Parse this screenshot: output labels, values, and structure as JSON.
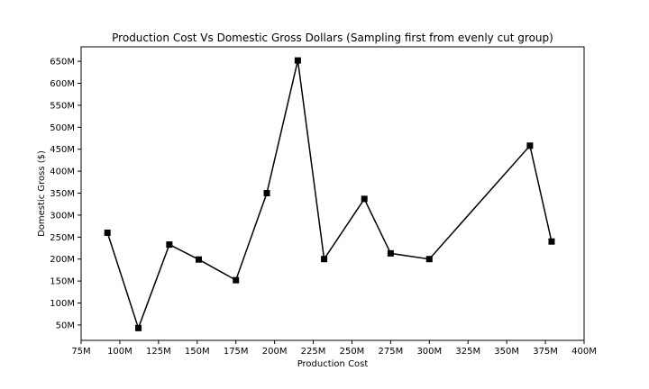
{
  "chart_data": {
    "type": "line",
    "title": "Production Cost Vs Domestic Gross Dollars (Sampling first from evenly cut group)",
    "xlabel": "Production Cost",
    "ylabel": "Domestic Gross ($)",
    "xlim": [
      75000000,
      400000000
    ],
    "ylim": [
      15000000,
      683000000
    ],
    "x_ticks": [
      75000000,
      100000000,
      125000000,
      150000000,
      175000000,
      200000000,
      225000000,
      250000000,
      275000000,
      300000000,
      325000000,
      350000000,
      375000000,
      400000000
    ],
    "x_tick_labels": [
      "75M",
      "100M",
      "125M",
      "150M",
      "175M",
      "200M",
      "225M",
      "250M",
      "275M",
      "300M",
      "325M",
      "350M",
      "375M",
      "400M"
    ],
    "y_ticks": [
      50000000,
      100000000,
      150000000,
      200000000,
      250000000,
      300000000,
      350000000,
      400000000,
      450000000,
      500000000,
      550000000,
      600000000,
      650000000
    ],
    "y_tick_labels": [
      "50M",
      "100M",
      "150M",
      "200M",
      "250M",
      "300M",
      "350M",
      "400M",
      "450M",
      "500M",
      "550M",
      "600M",
      "650M"
    ],
    "grid": false,
    "series": [
      {
        "marker": "square",
        "color": "#000000",
        "x": [
          92000000,
          112000000,
          132000000,
          151000000,
          175000000,
          195000000,
          215000000,
          232000000,
          258000000,
          275000000,
          300000000,
          365000000,
          379000000
        ],
        "y": [
          260000000,
          43000000,
          233000000,
          199000000,
          152000000,
          350000000,
          652000000,
          200000000,
          337000000,
          213000000,
          200000000,
          458000000,
          240000000
        ]
      }
    ]
  }
}
